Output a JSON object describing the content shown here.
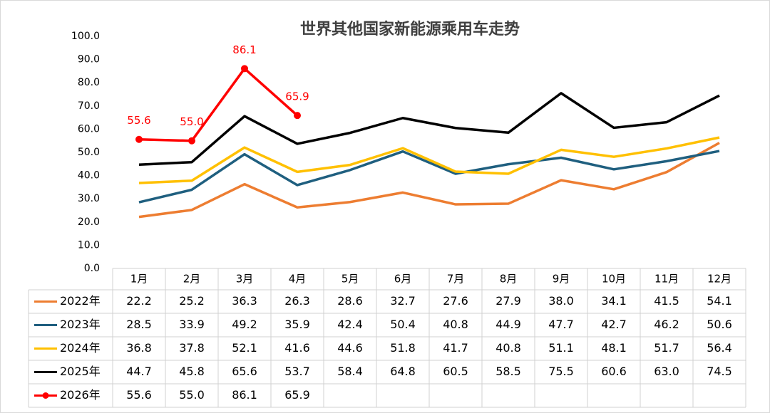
{
  "chart_data": {
    "type": "line",
    "title": "世界其他国家新能源乘用车走势",
    "categories": [
      "1月",
      "2月",
      "3月",
      "4月",
      "5月",
      "6月",
      "7月",
      "8月",
      "9月",
      "10月",
      "11月",
      "12月"
    ],
    "ylim": [
      0,
      100
    ],
    "yticks": [
      {
        "value": 0,
        "label": "0.0"
      },
      {
        "value": 10,
        "label": "10.0"
      },
      {
        "value": 20,
        "label": "20.0"
      },
      {
        "value": 30,
        "label": "30.0"
      },
      {
        "value": 40,
        "label": "40.0"
      },
      {
        "value": 50,
        "label": "50.0"
      },
      {
        "value": 60,
        "label": "60.0"
      },
      {
        "value": 70,
        "label": "70.0"
      },
      {
        "value": 80,
        "label": "80.0"
      },
      {
        "value": 90,
        "label": "90.0"
      },
      {
        "value": 100,
        "label": "100.0"
      }
    ],
    "series": [
      {
        "name": "2022年",
        "color": "#ED7D31",
        "markers": false,
        "data_labels": false,
        "values": [
          22.2,
          25.2,
          36.3,
          26.3,
          28.6,
          32.7,
          27.6,
          27.9,
          38,
          34.1,
          41.5,
          54.1
        ],
        "value_labels": [
          "22.2",
          "25.2",
          "36.3",
          "26.3",
          "28.6",
          "32.7",
          "27.6",
          "27.9",
          "38.0",
          "34.1",
          "41.5",
          "54.1"
        ]
      },
      {
        "name": "2023年",
        "color": "#1F5F7F",
        "markers": false,
        "data_labels": false,
        "values": [
          28.5,
          33.9,
          49.2,
          35.9,
          42.4,
          50.4,
          40.8,
          44.9,
          47.7,
          42.7,
          46.2,
          50.6
        ],
        "value_labels": [
          "28.5",
          "33.9",
          "49.2",
          "35.9",
          "42.4",
          "50.4",
          "40.8",
          "44.9",
          "47.7",
          "42.7",
          "46.2",
          "50.6"
        ]
      },
      {
        "name": "2024年",
        "color": "#FFC000",
        "markers": false,
        "data_labels": false,
        "values": [
          36.8,
          37.8,
          52.1,
          41.6,
          44.6,
          51.8,
          41.7,
          40.8,
          51.1,
          48.1,
          51.7,
          56.4
        ],
        "value_labels": [
          "36.8",
          "37.8",
          "52.1",
          "41.6",
          "44.6",
          "51.8",
          "41.7",
          "40.8",
          "51.1",
          "48.1",
          "51.7",
          "56.4"
        ]
      },
      {
        "name": "2025年",
        "color": "#000000",
        "markers": false,
        "data_labels": false,
        "values": [
          44.7,
          45.8,
          65.6,
          53.7,
          58.4,
          64.8,
          60.5,
          58.5,
          75.5,
          60.6,
          63,
          74.5
        ],
        "value_labels": [
          "44.7",
          "45.8",
          "65.6",
          "53.7",
          "58.4",
          "64.8",
          "60.5",
          "58.5",
          "75.5",
          "60.6",
          "63.0",
          "74.5"
        ]
      },
      {
        "name": "2026年",
        "color": "#FF0000",
        "markers": true,
        "data_labels": true,
        "values": [
          55.6,
          55,
          86.1,
          65.9,
          null,
          null,
          null,
          null,
          null,
          null,
          null,
          null
        ],
        "value_labels": [
          "55.6",
          "55.0",
          "86.1",
          "65.9",
          null,
          null,
          null,
          null,
          null,
          null,
          null,
          null
        ]
      }
    ]
  }
}
